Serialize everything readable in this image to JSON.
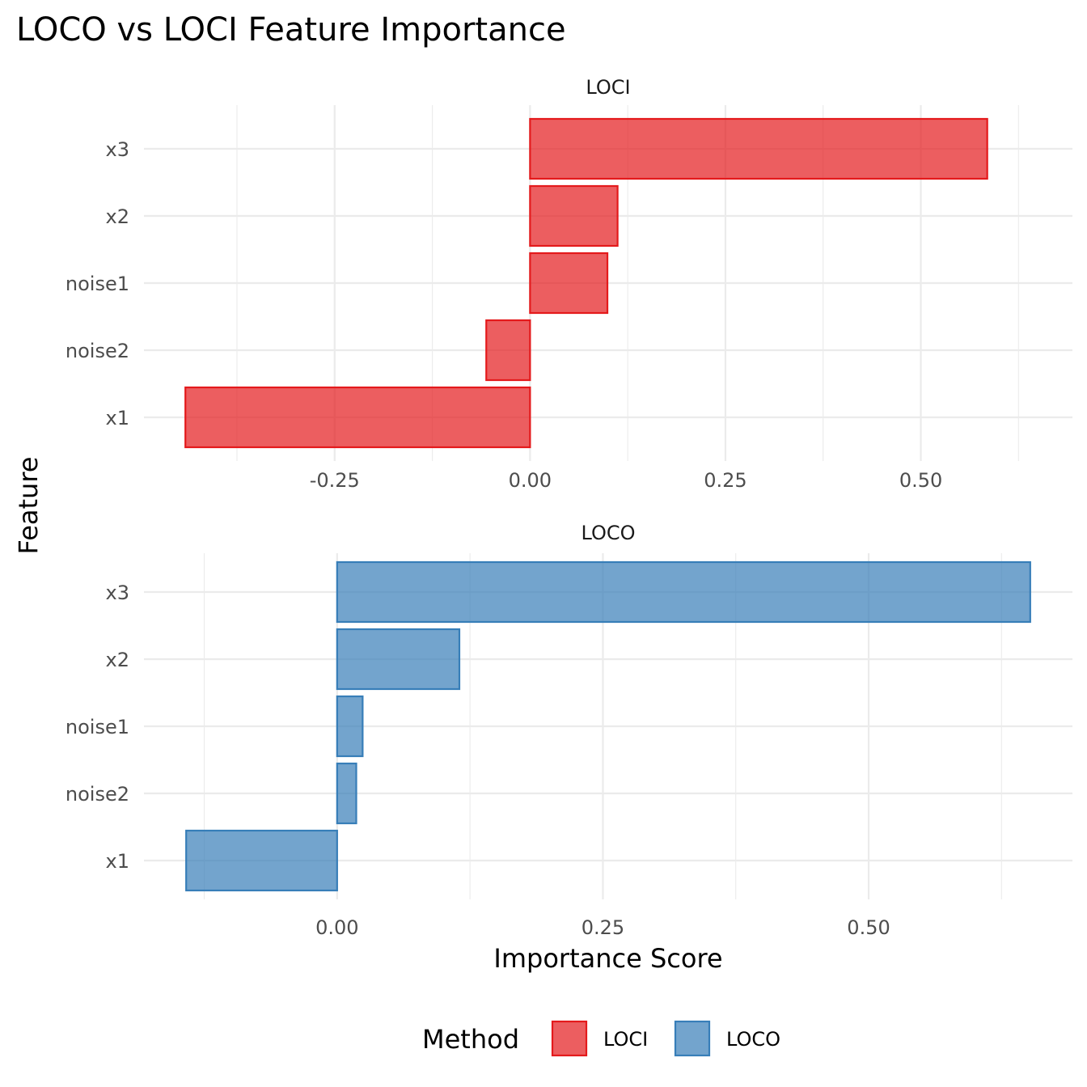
{
  "chart_data": {
    "type": "bar",
    "orientation": "horizontal",
    "title": "LOCO vs LOCI Feature Importance",
    "xlabel": "Importance Score",
    "ylabel": "Feature",
    "categories": [
      "x3",
      "x2",
      "noise1",
      "noise2",
      "x1"
    ],
    "legend": {
      "title": "Method",
      "position": "bottom",
      "entries": [
        {
          "label": "LOCI",
          "fill": "#E41A1C"
        },
        {
          "label": "LOCO",
          "fill": "#377EB8"
        }
      ]
    },
    "grid": true,
    "panels": [
      {
        "name": "LOCI",
        "color": "#E41A1C",
        "xlim": [
          -0.44,
          0.64
        ],
        "x_ticks": [
          -0.25,
          0.0,
          0.25,
          0.5
        ],
        "x_tick_labels": [
          "-0.25",
          "0.00",
          "0.25",
          "0.50"
        ],
        "values": {
          "x3": 0.585,
          "x2": 0.112,
          "noise1": 0.099,
          "noise2": -0.056,
          "x1": -0.441
        }
      },
      {
        "name": "LOCO",
        "color": "#377EB8",
        "xlim": [
          -0.142,
          0.652
        ],
        "x_ticks": [
          0.0,
          0.25,
          0.5
        ],
        "x_tick_labels": [
          "0.00",
          "0.25",
          "0.50"
        ],
        "values": {
          "x3": 0.652,
          "x2": 0.115,
          "noise1": 0.024,
          "noise2": 0.018,
          "x1": -0.142
        }
      }
    ]
  }
}
